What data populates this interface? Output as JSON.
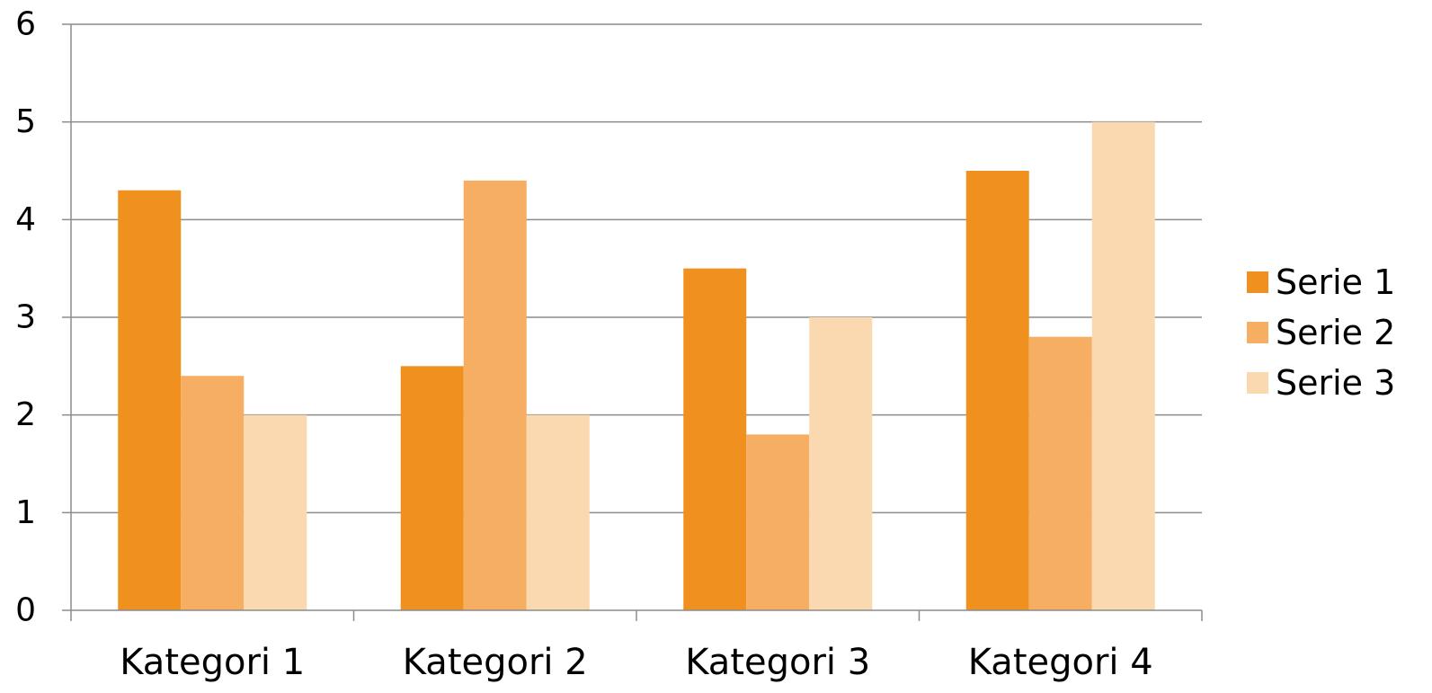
{
  "chart_data": {
    "type": "bar",
    "title": "",
    "xlabel": "",
    "ylabel": "",
    "categories": [
      "Kategori 1",
      "Kategori 2",
      "Kategori 3",
      "Kategori 4"
    ],
    "series": [
      {
        "name": "Serie 1",
        "values": [
          4.3,
          2.5,
          3.5,
          4.5
        ],
        "color": "#f0901e"
      },
      {
        "name": "Serie 2",
        "values": [
          2.4,
          4.4,
          1.8,
          2.8
        ],
        "color": "#f5ae62"
      },
      {
        "name": "Serie 3",
        "values": [
          2.0,
          2.0,
          3.0,
          5.0
        ],
        "color": "#fad8b0"
      }
    ],
    "ylim": [
      0,
      6
    ],
    "yticks": [
      "0",
      "1",
      "2",
      "3",
      "4",
      "5",
      "6"
    ],
    "grid": true,
    "legend_position": "right"
  }
}
